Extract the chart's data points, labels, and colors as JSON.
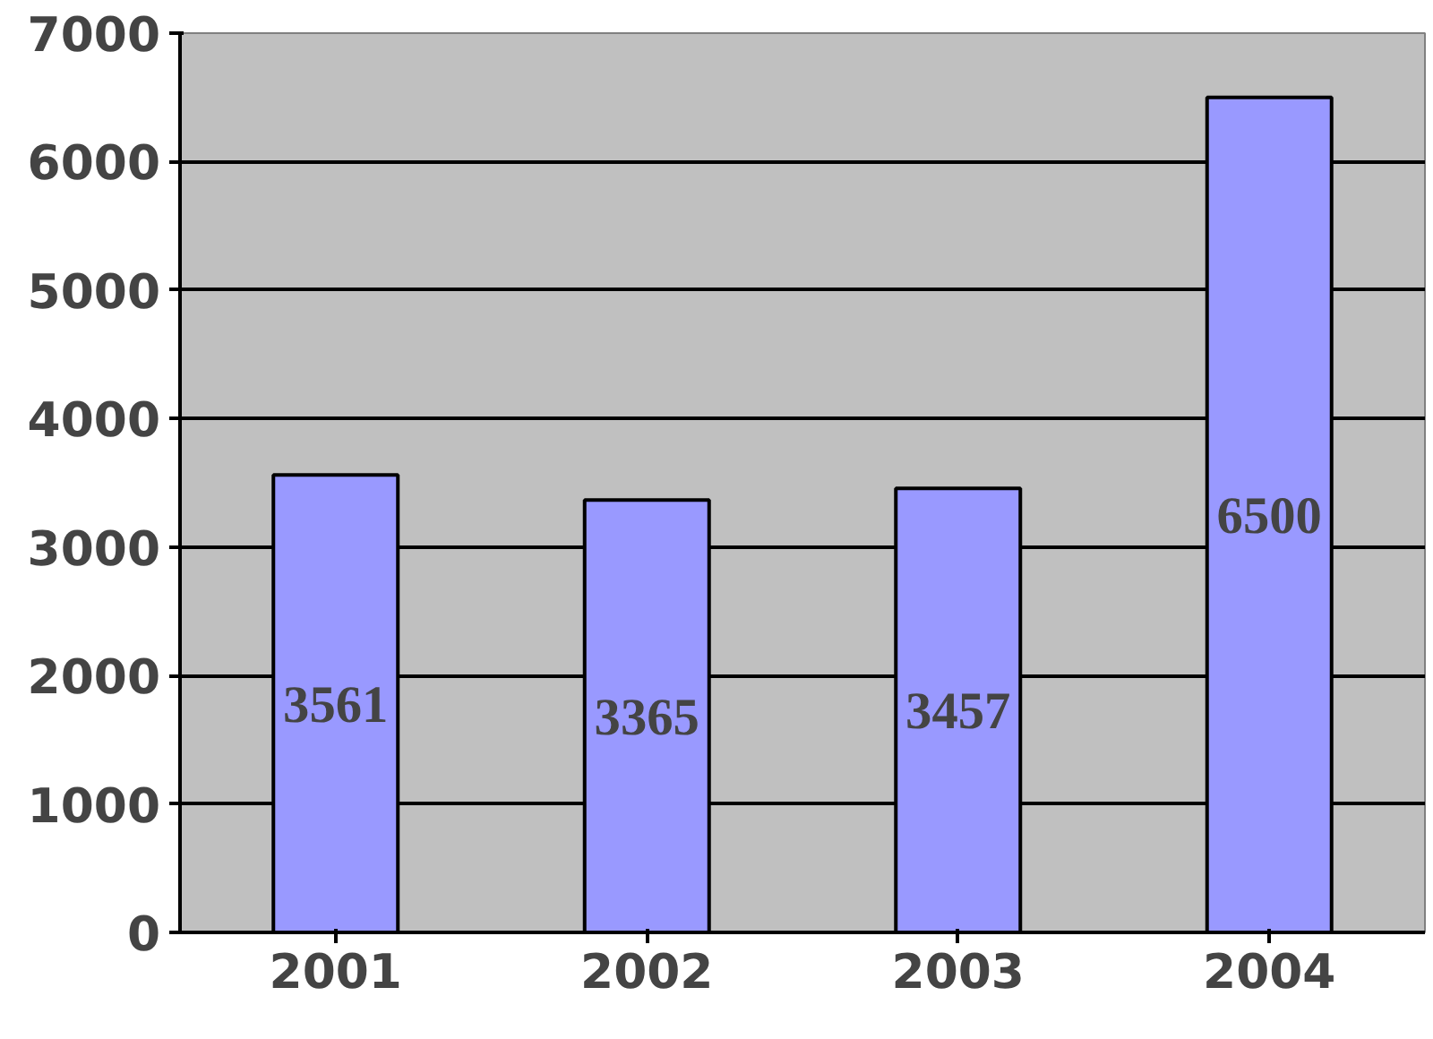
{
  "chart_data": {
    "type": "bar",
    "categories": [
      "2001",
      "2002",
      "2003",
      "2004"
    ],
    "values": [
      3561,
      3365,
      3457,
      6500
    ],
    "color": "#9999ff",
    "ylim": [
      0,
      7000
    ],
    "yticks": [
      0,
      1000,
      2000,
      3000,
      4000,
      5000,
      6000,
      7000
    ],
    "grid": "y",
    "data_labels": true
  }
}
